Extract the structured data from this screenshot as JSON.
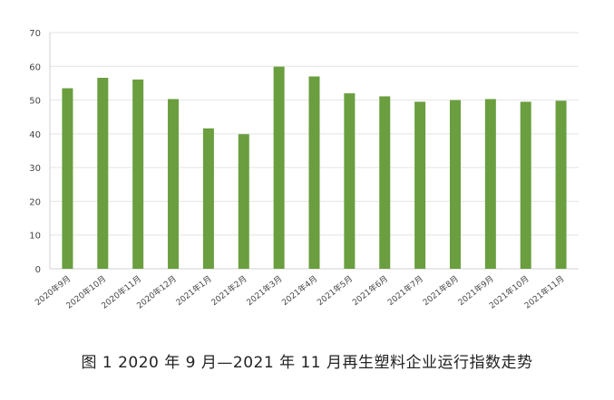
{
  "chart_data": {
    "type": "bar",
    "categories": [
      "2020年9月",
      "2020年10月",
      "2020年11月",
      "2020年12月",
      "2021年1月",
      "2021年2月",
      "2021年3月",
      "2021年4月",
      "2021年5月",
      "2021年6月",
      "2021年7月",
      "2021年8月",
      "2021年9月",
      "2021年10月",
      "2021年11月"
    ],
    "values": [
      53.5,
      56.6,
      56.1,
      50.3,
      41.6,
      39.9,
      59.9,
      57.0,
      52.0,
      51.1,
      49.5,
      50.0,
      50.3,
      49.5,
      49.8
    ],
    "ylim": [
      0,
      70
    ],
    "yticks": [
      "0",
      "10",
      "20",
      "30",
      "40",
      "50",
      "60",
      "70"
    ],
    "grid": true,
    "bar_color": "#6a9e3f",
    "grid_color": "#e4e4e4",
    "axis_color": "#d0d0d0",
    "tick_color": "#444444"
  },
  "caption": "图 1  2020 年 9 月—2021 年 11 月再生塑料企业运行指数走势"
}
